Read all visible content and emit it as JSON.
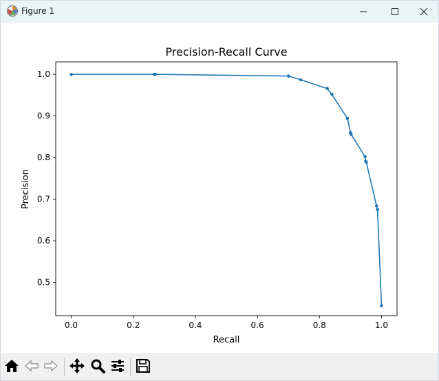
{
  "window": {
    "title": "Figure 1"
  },
  "toolbar": {
    "tools": [
      "home-icon",
      "back-icon",
      "forward-icon",
      "pan-icon",
      "zoom-icon",
      "configure-subplots-icon",
      "save-icon"
    ]
  },
  "chart_data": {
    "type": "line",
    "title": "Precision-Recall Curve",
    "xlabel": "Recall",
    "ylabel": "Precision",
    "xlim": [
      -0.05,
      1.05
    ],
    "ylim": [
      0.42,
      1.03
    ],
    "xticks": [
      "0.0",
      "0.2",
      "0.4",
      "0.6",
      "0.8",
      "1.0"
    ],
    "yticks": [
      "0.5",
      "0.6",
      "0.7",
      "0.8",
      "0.9",
      "1.0"
    ],
    "xtick_values": [
      0.0,
      0.2,
      0.4,
      0.6,
      0.8,
      1.0
    ],
    "ytick_values": [
      0.5,
      0.6,
      0.7,
      0.8,
      0.9,
      1.0
    ],
    "grid": false,
    "color": "#1f77b4",
    "marker": "circle",
    "series": [
      {
        "x": [
          0.0,
          0.267,
          0.271,
          0.7,
          0.74,
          0.825,
          0.84,
          0.89,
          0.9,
          0.902,
          0.947,
          0.949,
          0.951,
          0.984,
          0.987,
          1.0
        ],
        "y": [
          1.0,
          1.0,
          1.0,
          0.996,
          0.987,
          0.966,
          0.952,
          0.894,
          0.86,
          0.856,
          0.802,
          0.791,
          0.789,
          0.684,
          0.675,
          0.444
        ]
      }
    ]
  }
}
